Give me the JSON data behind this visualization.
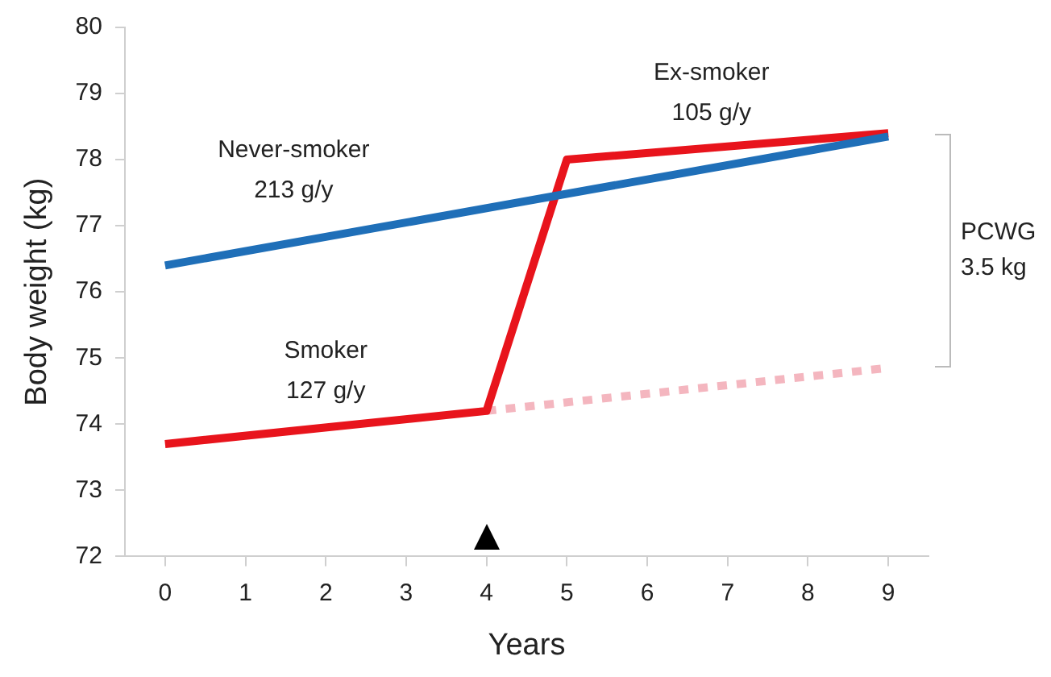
{
  "chart_data": {
    "type": "line",
    "xlabel": "Years",
    "ylabel": "Body weight (kg)",
    "xlim": [
      -0.5,
      9.5
    ],
    "xticks": [
      0,
      1,
      2,
      3,
      4,
      5,
      6,
      7,
      8,
      9
    ],
    "ylim": [
      72,
      80
    ],
    "yticks": [
      72,
      73,
      74,
      75,
      76,
      77,
      78,
      79,
      80
    ],
    "grid": false,
    "legend": false,
    "marker": "none",
    "series": [
      {
        "color": "#1f6fb8",
        "x": [
          0,
          9
        ],
        "values": [
          76.4,
          78.35
        ]
      },
      {
        "color": "#e8141c",
        "x": [
          0,
          4,
          5,
          9
        ],
        "values": [
          73.7,
          74.2,
          78.0,
          78.4
        ]
      },
      {
        "color": "#f4b6bf",
        "x": [
          4,
          9
        ],
        "values": [
          74.2,
          74.85
        ],
        "line_style": "dotted"
      }
    ],
    "annotations": [
      "Never-smoker\n213 g/y",
      "Smoker\n127 g/y",
      "Ex-smoker\n105 g/y",
      "PCWG\n3.5 kg"
    ]
  }
}
